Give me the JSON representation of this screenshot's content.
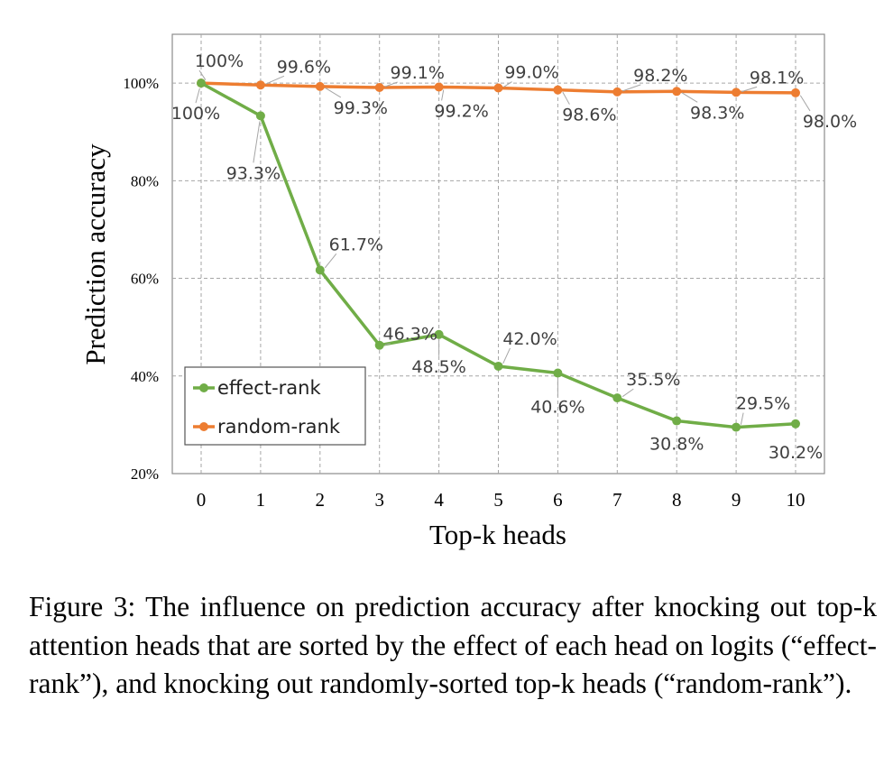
{
  "chart_data": {
    "type": "line",
    "xlabel": "Top-k heads",
    "ylabel": "Prediction accuracy",
    "x": [
      0,
      1,
      2,
      3,
      4,
      5,
      6,
      7,
      8,
      9,
      10
    ],
    "xlim": [
      0,
      10
    ],
    "ylim": [
      20,
      110
    ],
    "y_ticks": [
      "20%",
      "40%",
      "60%",
      "80%",
      "100%"
    ],
    "y_tick_values": [
      20,
      40,
      60,
      80,
      100
    ],
    "grid": true,
    "legend_position": "bottom-left",
    "series": [
      {
        "name": "effect-rank",
        "color": "#70ad47",
        "values": [
          100,
          93.3,
          61.7,
          46.3,
          48.5,
          42.0,
          40.6,
          35.5,
          30.8,
          29.5,
          30.2
        ],
        "labels": [
          "100%",
          "93.3%",
          "61.7%",
          "46.3%",
          "48.5%",
          "42.0%",
          "40.6%",
          "35.5%",
          "30.8%",
          "29.5%",
          "30.2%"
        ]
      },
      {
        "name": "random-rank",
        "color": "#ed7d31",
        "values": [
          100,
          99.6,
          99.3,
          99.1,
          99.2,
          99.0,
          98.6,
          98.2,
          98.3,
          98.1,
          98.0
        ],
        "labels": [
          "100%",
          "99.6%",
          "99.3%",
          "99.1%",
          "99.2%",
          "99.0%",
          "98.6%",
          "98.2%",
          "98.3%",
          "98.1%",
          "98.0%"
        ]
      }
    ]
  },
  "caption": "Figure 3: The influence on prediction accuracy after knocking out top-k attention heads that are sorted by the effect of each head on logits (“effect-rank”), and knocking out randomly-sorted top-k heads (“random-rank”)."
}
